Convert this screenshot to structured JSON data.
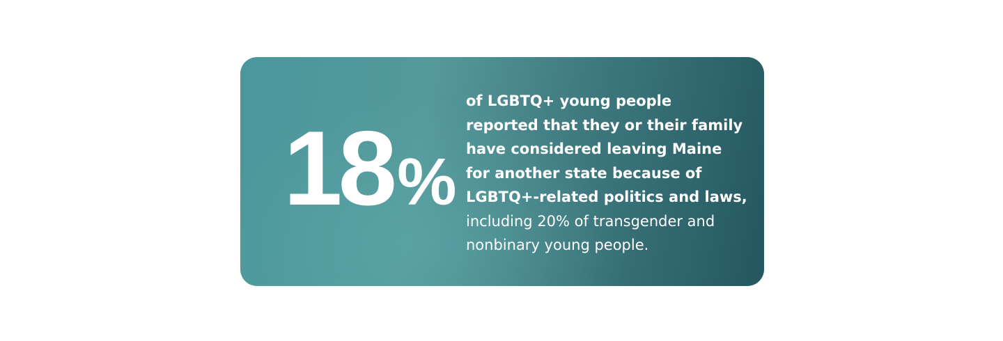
{
  "stat": {
    "number": "18",
    "unit": "%",
    "bold_lines": [
      "of LGBTQ+ young people",
      "reported that they or their family",
      "have considered leaving Maine",
      "for another state because of",
      "LGBTQ+-related politics and laws,"
    ],
    "regular_lines": [
      "including 20% of transgender and",
      "nonbinary young people."
    ]
  }
}
